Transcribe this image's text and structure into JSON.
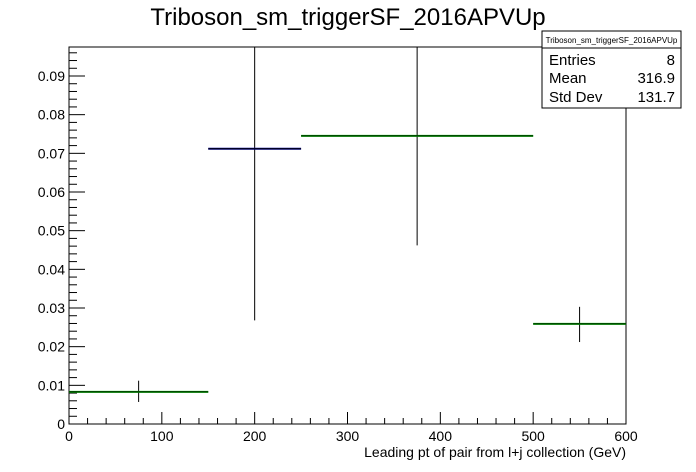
{
  "chart_data": {
    "type": "histogram",
    "title": "Triboson_sm_triggerSF_2016APVUp",
    "xlabel": "Leading pt of pair from l+j collection (GeV)",
    "ylabel": "",
    "xlim": [
      0,
      600
    ],
    "ylim": [
      0,
      0.0975
    ],
    "grid": false,
    "x_ticks": [
      0,
      100,
      200,
      300,
      400,
      500,
      600
    ],
    "y_ticks": [
      0,
      0.01,
      0.02,
      0.03,
      0.04,
      0.05,
      0.06,
      0.07,
      0.08,
      0.09
    ],
    "x_tick_labels": [
      "0",
      "100",
      "200",
      "300",
      "400",
      "500",
      "600"
    ],
    "y_tick_labels": [
      "0",
      "0.01",
      "0.02",
      "0.03",
      "0.04",
      "0.05",
      "0.06",
      "0.07",
      "0.08",
      "0.09"
    ],
    "bins": [
      {
        "xlo": 0,
        "xhi": 150,
        "value": 0.0083,
        "err_lo": 0.0057,
        "err_hi": 0.0112,
        "color": "#00cc00"
      },
      {
        "xlo": 150,
        "xhi": 250,
        "value": 0.0712,
        "err_lo": 0.0268,
        "err_hi": 0.0975,
        "color": "#000099"
      },
      {
        "xlo": 250,
        "xhi": 500,
        "value": 0.0745,
        "err_lo": 0.0462,
        "err_hi": 0.0975,
        "color": "#00cc00"
      },
      {
        "xlo": 500,
        "xhi": 600,
        "value": 0.0259,
        "err_lo": 0.0212,
        "err_hi": 0.0303,
        "color": "#00cc00"
      }
    ],
    "stats_box": {
      "name": "Triboson_sm_triggerSF_2016APVUp",
      "entries_label": "Entries",
      "entries": "8",
      "mean_label": "Mean",
      "mean": "316.9",
      "stddev_label": "Std Dev",
      "stddev": "131.7"
    }
  }
}
